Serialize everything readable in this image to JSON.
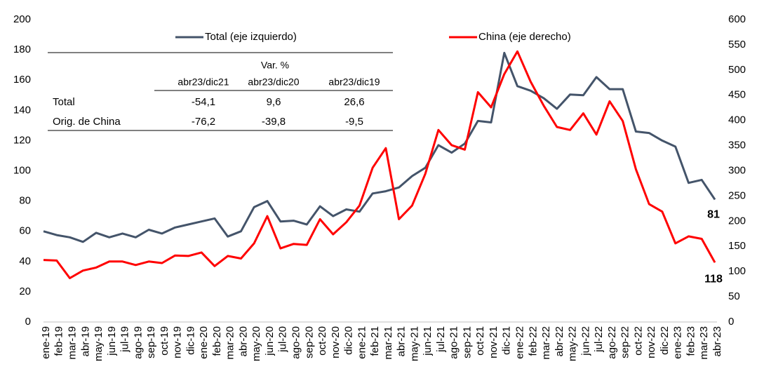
{
  "chart_data": {
    "type": "line",
    "categories": [
      "ene-19",
      "feb-19",
      "mar-19",
      "abr-19",
      "may-19",
      "jun-19",
      "jul-19",
      "ago-19",
      "sep-19",
      "oct-19",
      "nov-19",
      "dic-19",
      "ene-20",
      "feb-20",
      "mar-20",
      "abr-20",
      "may-20",
      "jun-20",
      "jul-20",
      "ago-20",
      "sep-20",
      "oct-20",
      "nov-20",
      "dic-20",
      "ene-21",
      "feb-21",
      "mar-21",
      "abr-21",
      "may-21",
      "jun-21",
      "jul-21",
      "ago-21",
      "sep-21",
      "oct-21",
      "nov-21",
      "dic-21",
      "ene-22",
      "feb-22",
      "mar-22",
      "abr-22",
      "may-22",
      "jun-22",
      "jul-22",
      "ago-22",
      "sep-22",
      "oct-22",
      "nov-22",
      "dic-22",
      "ene-23",
      "feb-23",
      "mar-23",
      "abr-23"
    ],
    "series": [
      {
        "name": "Total (eje izquierdo)",
        "color": "#44546a",
        "values": [
          60,
          57.5,
          56,
          53,
          59,
          56,
          58.5,
          56,
          61,
          58.5,
          62.5,
          64.5,
          66.5,
          68.5,
          56.5,
          60,
          76,
          80,
          66.5,
          67,
          64.5,
          76.5,
          70,
          74.5,
          73,
          85,
          86.5,
          89,
          96.5,
          102,
          117,
          112,
          118,
          133,
          132,
          178,
          156,
          153,
          148,
          141,
          150.5,
          150,
          162,
          154,
          154,
          126,
          125,
          120,
          116,
          92,
          94,
          81
        ]
      },
      {
        "name": "China (eje derecho)",
        "color": "#ff0000",
        "axis": "y2",
        "values": [
          123,
          122,
          87,
          102,
          108,
          120,
          120,
          113,
          120,
          117,
          132,
          131,
          138,
          111,
          131,
          126,
          156,
          210,
          146,
          155,
          153,
          204,
          174,
          198,
          231,
          306,
          345,
          204,
          231,
          294,
          381,
          351,
          342,
          456,
          426,
          492,
          537,
          477,
          429,
          387,
          381,
          414,
          372,
          438,
          399,
          303,
          234,
          219,
          156,
          170,
          165,
          118
        ]
      }
    ],
    "ylim": [
      0,
      200
    ],
    "yticks": [
      0,
      20,
      40,
      60,
      80,
      100,
      120,
      140,
      160,
      180,
      200
    ],
    "y2lim": [
      0,
      600
    ],
    "y2ticks": [
      0,
      50,
      100,
      150,
      200,
      250,
      300,
      350,
      400,
      450,
      500,
      550,
      600
    ],
    "grid": false,
    "table": {
      "group_header": "Var. %",
      "columns": [
        "abr23/dic21",
        "abr23/dic20",
        "abr23/dic19"
      ],
      "rows": [
        [
          "Total",
          "-54,1",
          "9,6",
          "26,6"
        ],
        [
          "Orig. de China",
          "-76,2",
          "-39,8",
          "-9,5"
        ]
      ]
    }
  }
}
